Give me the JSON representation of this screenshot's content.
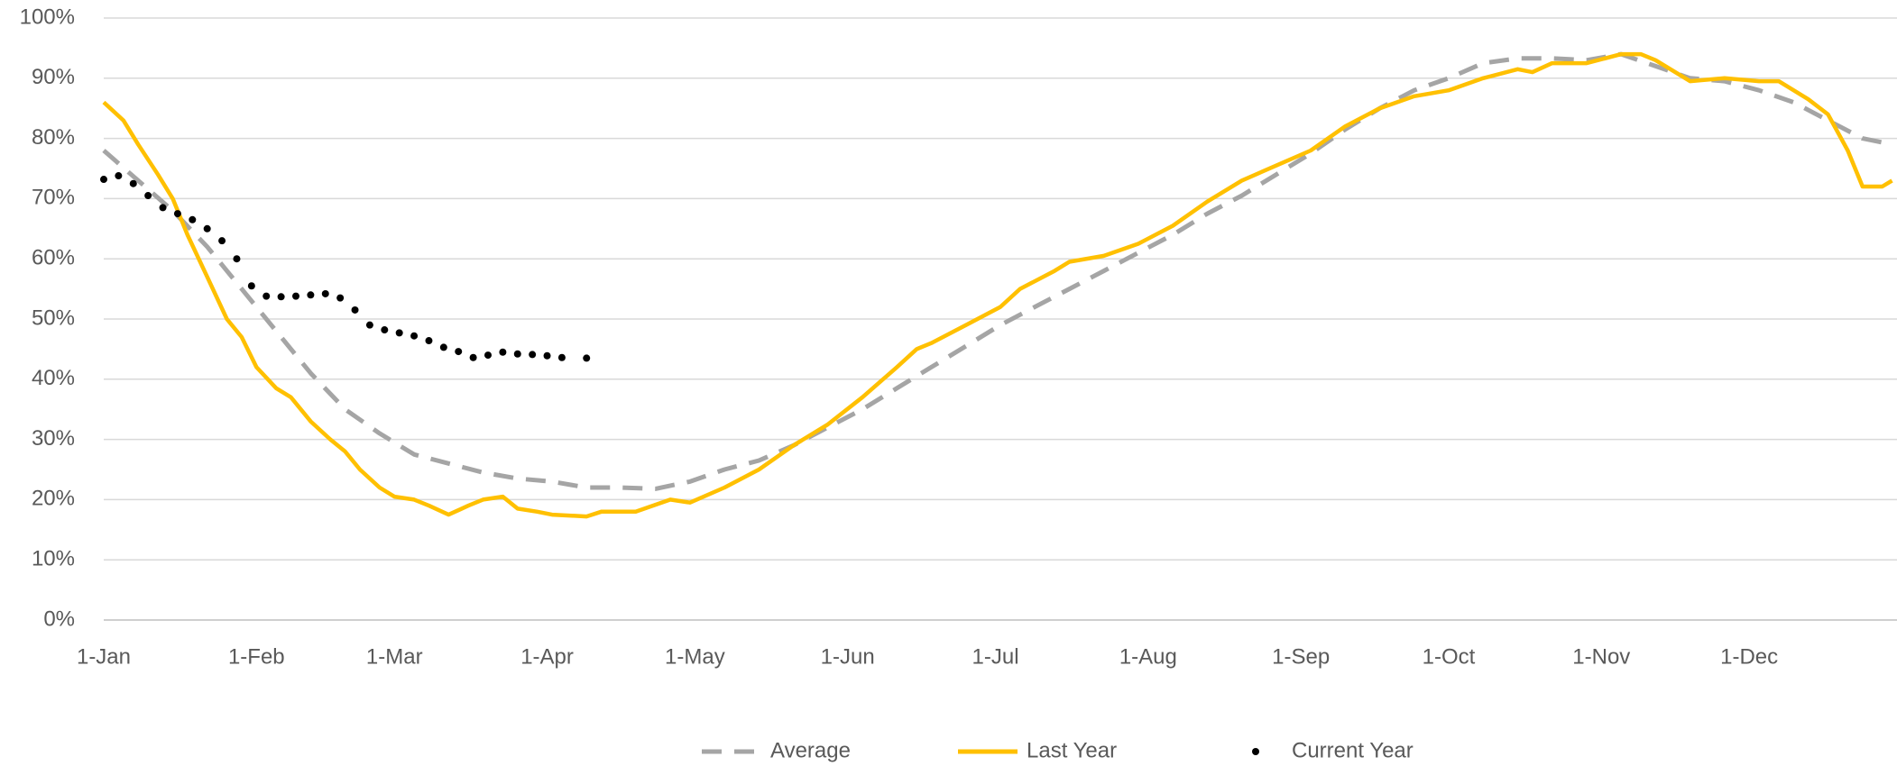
{
  "chart_data": {
    "type": "line",
    "xlim": [
      0,
      364
    ],
    "xticks": [
      {
        "value": 0,
        "label": "1-Jan"
      },
      {
        "value": 31,
        "label": "1-Feb"
      },
      {
        "value": 59,
        "label": "1-Mar"
      },
      {
        "value": 90,
        "label": "1-Apr"
      },
      {
        "value": 120,
        "label": "1-May"
      },
      {
        "value": 151,
        "label": "1-Jun"
      },
      {
        "value": 181,
        "label": "1-Jul"
      },
      {
        "value": 212,
        "label": "1-Aug"
      },
      {
        "value": 243,
        "label": "1-Sep"
      },
      {
        "value": 273,
        "label": "1-Oct"
      },
      {
        "value": 304,
        "label": "1-Nov"
      },
      {
        "value": 334,
        "label": "1-Dec"
      }
    ],
    "ylim": [
      0,
      100
    ],
    "yticks": [
      {
        "value": 0,
        "label": "0%"
      },
      {
        "value": 10,
        "label": "10%"
      },
      {
        "value": 20,
        "label": "20%"
      },
      {
        "value": 30,
        "label": "30%"
      },
      {
        "value": 40,
        "label": "40%"
      },
      {
        "value": 50,
        "label": "50%"
      },
      {
        "value": 60,
        "label": "60%"
      },
      {
        "value": 70,
        "label": "70%"
      },
      {
        "value": 80,
        "label": "80%"
      },
      {
        "value": 90,
        "label": "90%"
      },
      {
        "value": 100,
        "label": "100%"
      }
    ],
    "grid": true,
    "legend": "bottom",
    "series": [
      {
        "name": "Average",
        "color": "#a5a5a5",
        "style": "dashed",
        "x": [
          0,
          7,
          14,
          21,
          28,
          35,
          42,
          49,
          56,
          63,
          70,
          77,
          84,
          91,
          98,
          105,
          112,
          119,
          126,
          133,
          140,
          147,
          154,
          161,
          168,
          175,
          182,
          189,
          196,
          203,
          210,
          217,
          224,
          231,
          238,
          245,
          252,
          259,
          266,
          273,
          280,
          287,
          294,
          301,
          308,
          315,
          322,
          329,
          336,
          343,
          350,
          357,
          363
        ],
        "values": [
          78,
          73,
          68,
          62,
          55,
          48,
          41,
          35,
          31,
          27.5,
          26,
          24.5,
          23.5,
          23,
          22,
          22,
          21.8,
          23,
          25,
          26.5,
          29,
          32,
          35,
          38.5,
          42,
          45.5,
          49,
          52,
          55,
          58,
          61,
          64,
          67.5,
          70.5,
          74,
          77.5,
          81.5,
          85,
          88,
          90,
          92.5,
          93.3,
          93.3,
          93,
          94,
          92,
          90,
          89.5,
          88,
          86,
          83,
          80,
          79
        ]
      },
      {
        "name": "Last Year",
        "color": "#ffc000",
        "style": "solid",
        "x": [
          0,
          4,
          7,
          11,
          14,
          17,
          21,
          25,
          28,
          31,
          35,
          38,
          42,
          46,
          49,
          52,
          56,
          59,
          63,
          66,
          70,
          74,
          77,
          81,
          84,
          88,
          91,
          98,
          101,
          108,
          115,
          119,
          126,
          133,
          140,
          147,
          154,
          161,
          165,
          168,
          175,
          182,
          186,
          193,
          196,
          203,
          210,
          217,
          224,
          231,
          238,
          245,
          252,
          259,
          266,
          273,
          280,
          287,
          290,
          294,
          301,
          308,
          312,
          315,
          322,
          329,
          336,
          340,
          346,
          350,
          354,
          357,
          361,
          363
        ],
        "values": [
          86,
          83,
          79,
          74,
          70,
          64,
          57,
          50,
          47,
          42,
          38.5,
          37,
          33,
          30,
          28,
          25,
          22,
          20.5,
          20,
          19,
          17.5,
          19,
          20,
          20.5,
          18.5,
          18,
          17.5,
          17.2,
          18,
          18,
          20,
          19.5,
          22,
          25,
          29,
          32.5,
          37,
          42,
          45,
          46,
          49,
          52,
          55,
          58,
          59.5,
          60.5,
          62.5,
          65.5,
          69.5,
          73,
          75.5,
          78,
          82,
          85,
          87,
          88,
          90,
          91.5,
          91,
          92.5,
          92.5,
          94,
          94,
          93,
          89.5,
          90,
          89.5,
          89.5,
          86.5,
          84,
          78,
          72,
          72,
          73
        ]
      },
      {
        "name": "Current Year",
        "color": "#000000",
        "style": "dots",
        "x": [
          0,
          3,
          6,
          9,
          12,
          15,
          18,
          21,
          24,
          27,
          30,
          33,
          36,
          39,
          42,
          45,
          48,
          51,
          54,
          57,
          60,
          63,
          66,
          69,
          72,
          75,
          78,
          81,
          84,
          87,
          90,
          93,
          98
        ],
        "values": [
          73.2,
          73.8,
          72.5,
          70.5,
          68.5,
          67.5,
          66.5,
          65,
          63,
          60,
          55.5,
          53.8,
          53.7,
          53.8,
          54,
          54.2,
          53.5,
          51.5,
          49,
          48.2,
          47.7,
          47.2,
          46.4,
          45.3,
          44.6,
          43.6,
          44,
          44.5,
          44.2,
          44.1,
          43.9,
          43.6,
          43.5
        ]
      }
    ]
  }
}
